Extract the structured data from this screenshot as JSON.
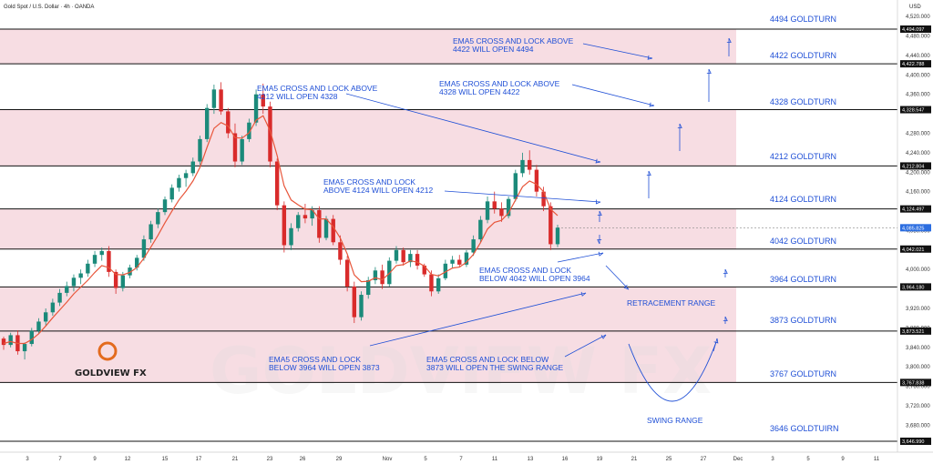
{
  "header": {
    "title": "Gold Spot / U.S. Dollar · 4h · OANDA",
    "currency": "USD"
  },
  "watermark": "GOLDVIEW FX",
  "logo": {
    "name": "GOLDVIEW FX",
    "brand_color": "#e36b1e"
  },
  "colors": {
    "zone": "#f7dde3",
    "level_line": "#111111",
    "text": "#1f4fd6",
    "up": "#1b8a7a",
    "down": "#d92b2b",
    "ema": "#e8563b"
  },
  "chart_data": {
    "type": "candlestick",
    "symbol": "Gold Spot / U.S. Dollar",
    "timeframe": "4h",
    "ylim": [
      3620,
      4520
    ],
    "y_ticks": [
      3680,
      3720,
      3760,
      3800,
      3840,
      3880,
      3920,
      4000,
      4040,
      4080,
      4160,
      4200,
      4240,
      4280,
      4360,
      4400,
      4440,
      4480,
      4520
    ],
    "x_ticks": [
      "3",
      "7",
      "9",
      "12",
      "15",
      "17",
      "21",
      "23",
      "26",
      "29",
      "Nov",
      "5",
      "7",
      "11",
      "13",
      "16",
      "19",
      "21",
      "25",
      "27",
      "Dec",
      "3",
      "5",
      "9",
      "11"
    ],
    "levels": [
      {
        "value": 4494.097,
        "tag": "4,494.097",
        "label": "4494 GOLDTURN"
      },
      {
        "value": 4422.788,
        "tag": "4,422.788",
        "label": "4422 GOLDTURN"
      },
      {
        "value": 4328.547,
        "tag": "4,328.547",
        "label": "4328 GOLDTURN"
      },
      {
        "value": 4212.804,
        "tag": "4,212.804",
        "label": "4212 GOLDTURN"
      },
      {
        "value": 4124.497,
        "tag": "4,124.497",
        "label": "4124 GOLDTURN"
      },
      {
        "value": 4042.021,
        "tag": "4,042.021",
        "label": "4042 GOLDTURN"
      },
      {
        "value": 3964.18,
        "tag": "3,964.180",
        "label": "3964 GOLDTURN"
      },
      {
        "value": 3873.521,
        "tag": "3,873.521",
        "label": "3873 GOLDTURN"
      },
      {
        "value": 3767.838,
        "tag": "3,767.838",
        "label": "3767 GOLDTURN"
      },
      {
        "value": 3646.99,
        "tag": "3,646.990",
        "label": "3646 GOLDTUIRN"
      }
    ],
    "current_price": {
      "value": 4085.825,
      "tag": "4,085.825"
    },
    "annotations": [
      {
        "lines": [
          "EMA5 CROSS AND LOCK ABOVE",
          "4422 WILL OPEN 4494"
        ]
      },
      {
        "lines": [
          "EMA5 CROSS AND LOCK ABOVE",
          "4328 WILL OPEN 4422"
        ]
      },
      {
        "lines": [
          "EMA5 CROSS AND LOCK ABOVE",
          "4212 WILL OPEN 4328"
        ]
      },
      {
        "lines": [
          "EMA5 CROSS AND LOCK",
          "ABOVE 4124 WILL OPEN 4212"
        ]
      },
      {
        "lines": [
          "EMA5 CROSS AND LOCK",
          "BELOW 4042 WILL OPEN 3964"
        ]
      },
      {
        "lines": [
          "RETRACEMENT RANGE"
        ]
      },
      {
        "lines": [
          "EMA5 CROSS AND LOCK",
          "BELOW 3964 WILL OPEN 3873"
        ]
      },
      {
        "lines": [
          "EMA5 CROSS AND LOCK BELOW",
          "3873 WILL OPEN THE SWING RANGE"
        ]
      },
      {
        "lines": [
          "SWING RANGE"
        ]
      }
    ],
    "candles": [
      [
        3858,
        3862,
        3835,
        3845
      ],
      [
        3845,
        3870,
        3840,
        3865
      ],
      [
        3865,
        3875,
        3825,
        3832
      ],
      [
        3832,
        3850,
        3815,
        3847
      ],
      [
        3847,
        3880,
        3842,
        3874
      ],
      [
        3874,
        3900,
        3868,
        3893
      ],
      [
        3893,
        3920,
        3885,
        3912
      ],
      [
        3912,
        3940,
        3905,
        3932
      ],
      [
        3932,
        3960,
        3925,
        3952
      ],
      [
        3952,
        3975,
        3945,
        3966
      ],
      [
        3966,
        3990,
        3955,
        3983
      ],
      [
        3983,
        4000,
        3970,
        3992
      ],
      [
        3992,
        4020,
        3985,
        4012
      ],
      [
        4012,
        4038,
        4005,
        4030
      ],
      [
        4030,
        4045,
        4018,
        4038
      ],
      [
        4038,
        4048,
        3985,
        3995
      ],
      [
        3995,
        4000,
        3950,
        3962
      ],
      [
        3962,
        3995,
        3955,
        3988
      ],
      [
        3988,
        4010,
        3982,
        4004
      ],
      [
        4004,
        4030,
        3998,
        4024
      ],
      [
        4024,
        4070,
        4018,
        4062
      ],
      [
        4062,
        4100,
        4055,
        4093
      ],
      [
        4093,
        4125,
        4085,
        4118
      ],
      [
        4118,
        4150,
        4112,
        4144
      ],
      [
        4144,
        4175,
        4138,
        4168
      ],
      [
        4168,
        4195,
        4160,
        4188
      ],
      [
        4188,
        4205,
        4170,
        4198
      ],
      [
        4198,
        4230,
        4192,
        4222
      ],
      [
        4222,
        4275,
        4215,
        4268
      ],
      [
        4268,
        4340,
        4262,
        4332
      ],
      [
        4332,
        4380,
        4320,
        4370
      ],
      [
        4370,
        4385,
        4318,
        4325
      ],
      [
        4325,
        4332,
        4270,
        4280
      ],
      [
        4280,
        4300,
        4210,
        4222
      ],
      [
        4222,
        4275,
        4215,
        4268
      ],
      [
        4268,
        4310,
        4262,
        4302
      ],
      [
        4302,
        4370,
        4295,
        4360
      ],
      [
        4360,
        4382,
        4320,
        4335
      ],
      [
        4335,
        4345,
        4210,
        4222
      ],
      [
        4222,
        4228,
        4122,
        4132
      ],
      [
        4132,
        4140,
        4035,
        4050
      ],
      [
        4050,
        4095,
        4040,
        4085
      ],
      [
        4085,
        4118,
        4078,
        4112
      ],
      [
        4112,
        4135,
        4095,
        4105
      ],
      [
        4105,
        4130,
        4090,
        4122
      ],
      [
        4122,
        4130,
        4055,
        4065
      ],
      [
        4065,
        4110,
        4060,
        4104
      ],
      [
        4104,
        4112,
        4050,
        4056
      ],
      [
        4056,
        4070,
        4010,
        4020
      ],
      [
        4020,
        4028,
        3955,
        3965
      ],
      [
        3965,
        3975,
        3890,
        3902
      ],
      [
        3902,
        3955,
        3895,
        3948
      ],
      [
        3948,
        3985,
        3940,
        3978
      ],
      [
        3978,
        4005,
        3970,
        3998
      ],
      [
        3998,
        4010,
        3960,
        3970
      ],
      [
        3970,
        4025,
        3965,
        4018
      ],
      [
        4018,
        4048,
        4012,
        4040
      ],
      [
        4040,
        4045,
        4008,
        4015
      ],
      [
        4015,
        4040,
        4005,
        4032
      ],
      [
        4032,
        4040,
        4000,
        4008
      ],
      [
        4008,
        4012,
        3985,
        3990
      ],
      [
        3990,
        3998,
        3945,
        3955
      ],
      [
        3955,
        3990,
        3950,
        3982
      ],
      [
        3982,
        4020,
        3978,
        4012
      ],
      [
        4012,
        4028,
        4002,
        4020
      ],
      [
        4020,
        4030,
        4005,
        4010
      ],
      [
        4010,
        4040,
        4005,
        4035
      ],
      [
        4035,
        4070,
        4028,
        4062
      ],
      [
        4062,
        4110,
        4055,
        4102
      ],
      [
        4102,
        4150,
        4095,
        4140
      ],
      [
        4140,
        4160,
        4115,
        4125
      ],
      [
        4125,
        4138,
        4098,
        4110
      ],
      [
        4110,
        4150,
        4105,
        4145
      ],
      [
        4145,
        4205,
        4140,
        4198
      ],
      [
        4198,
        4240,
        4190,
        4225
      ],
      [
        4225,
        4245,
        4195,
        4205
      ],
      [
        4205,
        4215,
        4150,
        4160
      ],
      [
        4160,
        4170,
        4120,
        4130
      ],
      [
        4130,
        4138,
        4040,
        4052
      ],
      [
        4052,
        4092,
        4046,
        4086
      ]
    ],
    "ema5": [
      3848,
      3852,
      3848,
      3848,
      3856,
      3868,
      3884,
      3901,
      3917,
      3933,
      3950,
      3964,
      3978,
      3994,
      4008,
      4004,
      3990,
      3989,
      3994,
      4004,
      4023,
      4046,
      4070,
      4096,
      4120,
      4143,
      4161,
      4182,
      4210,
      4251,
      4290,
      4302,
      4295,
      4271,
      4270,
      4281,
      4307,
      4316,
      4285,
      4234,
      4172,
      4143,
      4133,
      4124,
      4123,
      4104,
      4104,
      4088,
      4065,
      4032,
      3989,
      3975,
      3976,
      3983,
      3979,
      3992,
      4008,
      4010,
      4018,
      4015,
      4007,
      3990,
      3987,
      3995,
      4003,
      4005,
      4015,
      4031,
      4055,
      4083,
      4097,
      4101,
      4116,
      4143,
      4170,
      4182,
      4175,
      4160,
      4124,
      4111
    ]
  }
}
